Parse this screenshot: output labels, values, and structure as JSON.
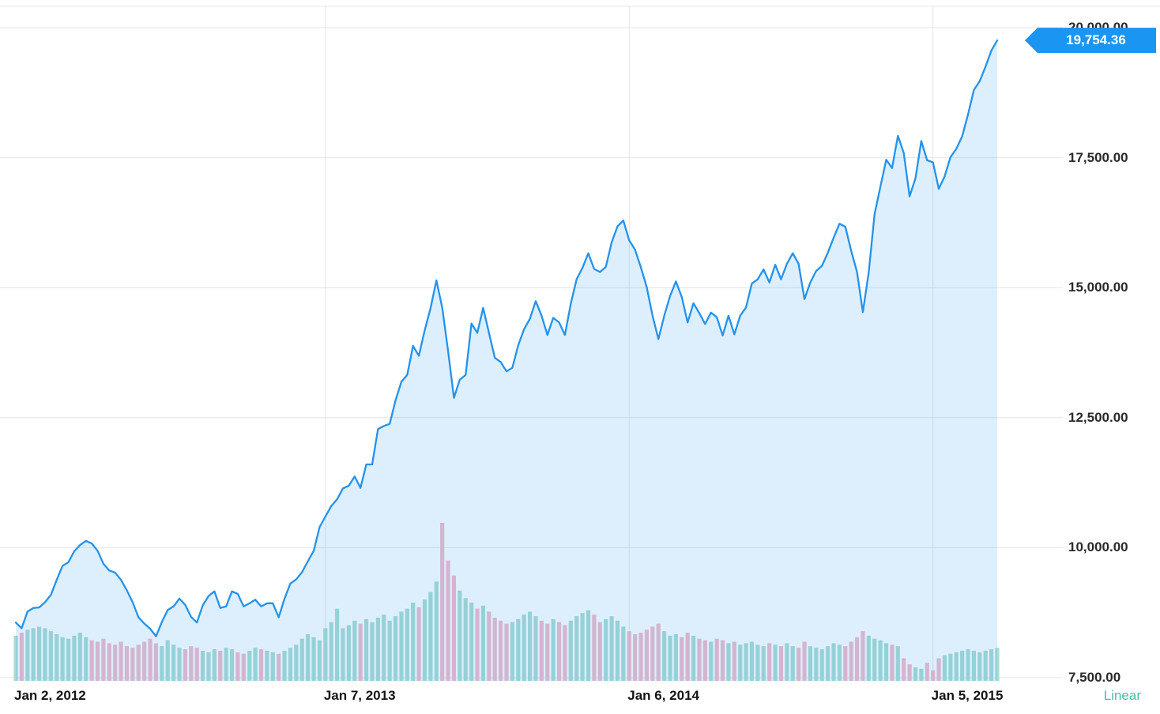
{
  "chart": {
    "last_price_label": "19,754.36",
    "scale_label": "Linear",
    "colors": {
      "line": "#2492ec",
      "area": "rgba(66,165,245,0.18)",
      "badge": "#1b95f2",
      "grid": "#e4e4e4",
      "vol_up": "#a9dbd1",
      "vol_down": "#f3b9c7",
      "x_label": "#141414",
      "y_label": "#2a2a2a",
      "linear": "#45bfa4"
    }
  },
  "chart_data": {
    "type": "area",
    "description": "Stock index weekly close line with area fill and up/down volume bars, Jan 2012 - Mar 2015",
    "ylim": [
      7439,
      20531
    ],
    "grid": true,
    "last_value": 19754.36,
    "y_ticks": [
      {
        "value": 20000,
        "label": "20,000.00"
      },
      {
        "value": 17500,
        "label": "17,500.00"
      },
      {
        "value": 15000,
        "label": "15,000.00"
      },
      {
        "value": 12500,
        "label": "12,500.00"
      },
      {
        "value": 10000,
        "label": "10,000.00"
      },
      {
        "value": 7500,
        "label": "7,500.00"
      }
    ],
    "x_ticks": [
      {
        "index": 0,
        "label": "Jan 2, 2012"
      },
      {
        "index": 53,
        "label": "Jan 7, 2013"
      },
      {
        "index": 105,
        "label": "Jan 6, 2014"
      },
      {
        "index": 157,
        "label": "Jan 5, 2015"
      }
    ],
    "price": [
      8560,
      8450,
      8770,
      8840,
      8850,
      8950,
      9090,
      9380,
      9650,
      9720,
      9930,
      10050,
      10130,
      10080,
      9940,
      9690,
      9560,
      9520,
      9380,
      9180,
      8950,
      8660,
      8540,
      8440,
      8295,
      8570,
      8800,
      8870,
      9020,
      8900,
      8670,
      8560,
      8890,
      9070,
      9160,
      8840,
      8870,
      9160,
      9110,
      8870,
      8930,
      9000,
      8870,
      8930,
      8930,
      8660,
      9020,
      9310,
      9390,
      9530,
      9740,
      9940,
      10395,
      10600,
      10800,
      10930,
      11140,
      11190,
      11370,
      11150,
      11600,
      11600,
      12280,
      12340,
      12380,
      12830,
      13190,
      13320,
      13880,
      13690,
      14180,
      14607,
      15140,
      14612,
      13780,
      12880,
      13230,
      13320,
      14310,
      14130,
      14610,
      14130,
      13650,
      13570,
      13390,
      13460,
      13890,
      14200,
      14400,
      14740,
      14460,
      14090,
      14420,
      14330,
      14090,
      14690,
      15160,
      15380,
      15660,
      15360,
      15300,
      15400,
      15870,
      16180,
      16290,
      15910,
      15730,
      15390,
      15010,
      14460,
      14010,
      14460,
      14840,
      15120,
      14820,
      14330,
      14700,
      14510,
      14300,
      14520,
      14430,
      14080,
      14460,
      14100,
      14460,
      14620,
      15080,
      15160,
      15350,
      15100,
      15440,
      15160,
      15460,
      15660,
      15460,
      14780,
      15100,
      15320,
      15420,
      15670,
      15960,
      16230,
      16170,
      15710,
      15300,
      14530,
      15290,
      16410,
      16940,
      17460,
      17300,
      17920,
      17590,
      16755,
      17100,
      17820,
      17450,
      17410,
      16900,
      17140,
      17510,
      17670,
      17910,
      18330,
      18800,
      18970,
      19250,
      19560,
      19754.36
    ],
    "volume": [
      60,
      64,
      68,
      70,
      72,
      70,
      66,
      62,
      58,
      56,
      60,
      64,
      58,
      54,
      52,
      56,
      50,
      48,
      52,
      46,
      44,
      48,
      52,
      56,
      50,
      46,
      54,
      48,
      44,
      42,
      46,
      44,
      40,
      38,
      42,
      40,
      44,
      42,
      38,
      36,
      40,
      44,
      42,
      40,
      38,
      36,
      40,
      44,
      48,
      56,
      62,
      58,
      54,
      70,
      78,
      96,
      70,
      74,
      80,
      76,
      82,
      78,
      84,
      88,
      80,
      86,
      92,
      96,
      104,
      98,
      108,
      118,
      132,
      210,
      160,
      140,
      120,
      110,
      104,
      96,
      100,
      92,
      84,
      80,
      76,
      78,
      82,
      88,
      92,
      86,
      80,
      76,
      82,
      78,
      74,
      80,
      86,
      90,
      94,
      88,
      78,
      82,
      86,
      80,
      72,
      66,
      62,
      64,
      68,
      72,
      76,
      66,
      60,
      62,
      58,
      64,
      60,
      56,
      54,
      52,
      56,
      54,
      50,
      52,
      48,
      50,
      52,
      48,
      46,
      50,
      48,
      46,
      50,
      46,
      44,
      52,
      46,
      44,
      42,
      46,
      50,
      48,
      46,
      52,
      58,
      66,
      60,
      56,
      54,
      50,
      48,
      46,
      30,
      22,
      18,
      16,
      24,
      14,
      30,
      34,
      36,
      38,
      40,
      42,
      40,
      38,
      40,
      42,
      44
    ]
  }
}
